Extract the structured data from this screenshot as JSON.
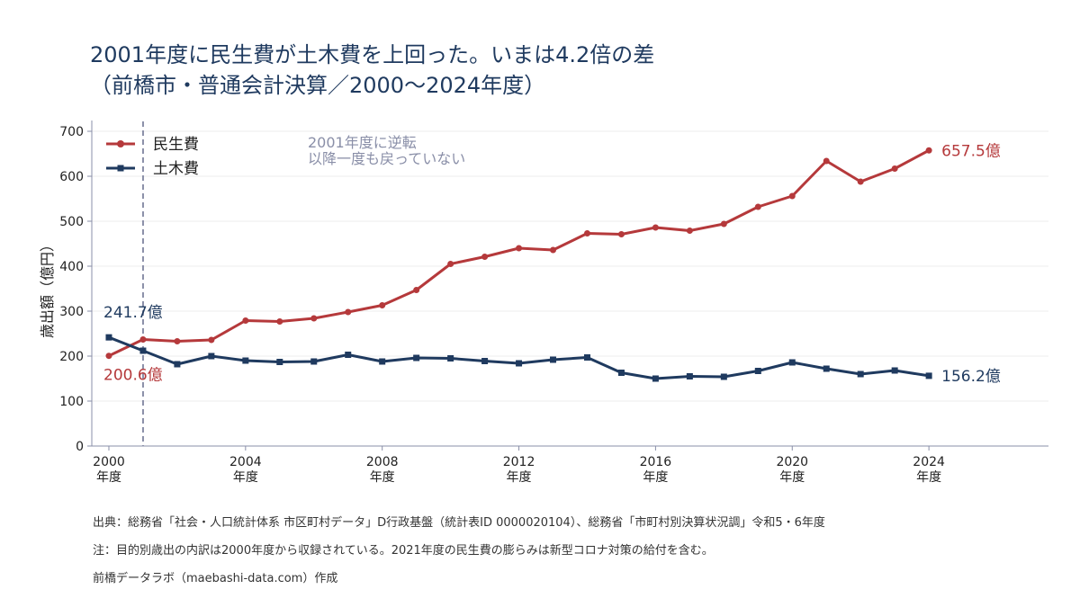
{
  "title": {
    "line1": "2001年度に民生費が土木費を上回った。いまは4.2倍の差",
    "line2": "（前橋市・普通会計決算／2000〜2024年度）"
  },
  "footer": {
    "source": "出典：総務省「社会・人口統計体系 市区町村データ」D行政基盤（統計表ID 0000020104）、総務省「市町村別決算状況調」令和5・6年度",
    "note": "注：目的別歳出の内訳は2000年度から収録されている。2021年度の民生費の膨らみは新型コロナ対策の給付を含む。",
    "credit": "前橋データラボ（maebashi-data.com）作成"
  },
  "chart_data": {
    "type": "line",
    "ylabel": "歳出額（億円）",
    "ylim": [
      0,
      700
    ],
    "yticks": [
      0,
      100,
      200,
      300,
      400,
      500,
      600,
      700
    ],
    "xlim": [
      1999.5,
      2027.5
    ],
    "xticks": [
      {
        "year": 2000,
        "label": "2000",
        "sublabel": "年度"
      },
      {
        "year": 2004,
        "label": "2004",
        "sublabel": "年度"
      },
      {
        "year": 2008,
        "label": "2008",
        "sublabel": "年度"
      },
      {
        "year": 2012,
        "label": "2012",
        "sublabel": "年度"
      },
      {
        "year": 2016,
        "label": "2016",
        "sublabel": "年度"
      },
      {
        "year": 2020,
        "label": "2020",
        "sublabel": "年度"
      },
      {
        "year": 2024,
        "label": "2024",
        "sublabel": "年度"
      }
    ],
    "x": [
      2000,
      2001,
      2002,
      2003,
      2004,
      2005,
      2006,
      2007,
      2008,
      2009,
      2010,
      2011,
      2012,
      2013,
      2014,
      2015,
      2016,
      2017,
      2018,
      2019,
      2020,
      2021,
      2022,
      2023,
      2024
    ],
    "series": [
      {
        "name": "民生費",
        "color": "#b5393b",
        "marker": "circle",
        "values": [
          200.6,
          237,
          233,
          236,
          279,
          277,
          284,
          298,
          313,
          347,
          405,
          421,
          440,
          436,
          473,
          471,
          486,
          479,
          494,
          532,
          556,
          634,
          588,
          617,
          657.5
        ],
        "start_label": "200.6億",
        "end_label": "657.5億"
      },
      {
        "name": "土木費",
        "color": "#1f3a5f",
        "marker": "square",
        "values": [
          241.7,
          212,
          182,
          200,
          190,
          187,
          188,
          203,
          188,
          196,
          195,
          189,
          184,
          192,
          197,
          163,
          150,
          155,
          154,
          167,
          186,
          172,
          160,
          168,
          156.2
        ],
        "start_label": "241.7億",
        "end_label": "156.2億"
      }
    ],
    "annotation": {
      "year": 2001,
      "lines": [
        "2001年度に逆転",
        "以降一度も戻っていない"
      ],
      "color": "#8a8fa8"
    },
    "legend": "top-left",
    "grid": "horizontal"
  }
}
